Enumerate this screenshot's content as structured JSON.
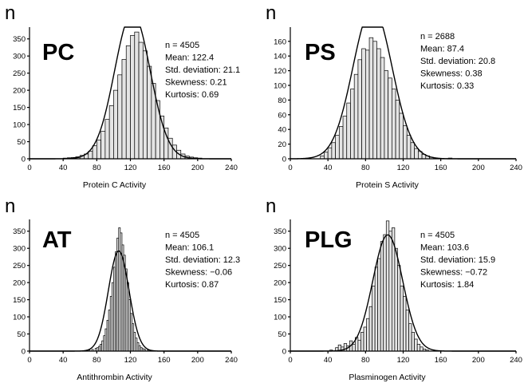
{
  "chart_data": [
    {
      "type": "bar",
      "panel_label": "PC",
      "y_axis_label": "n",
      "xlabel": "Protein C Activity",
      "xlim": [
        0,
        240
      ],
      "ylim": [
        0,
        375
      ],
      "xticks": [
        0,
        40,
        80,
        120,
        160,
        200,
        240
      ],
      "yticks": [
        0,
        50,
        100,
        150,
        200,
        250,
        300,
        350
      ],
      "stats": [
        "n = 4505",
        "Mean: 122.4",
        "Std. deviation: 21.1",
        "Skewness: 0.21",
        "Kurtosis: 0.69"
      ],
      "fit": {
        "mean": 122.4,
        "sd": 21.1,
        "n": 4505
      },
      "bin_width": 5,
      "bins": [
        {
          "x": 40,
          "y": 2
        },
        {
          "x": 45,
          "y": 3
        },
        {
          "x": 50,
          "y": 4
        },
        {
          "x": 55,
          "y": 6
        },
        {
          "x": 60,
          "y": 10
        },
        {
          "x": 65,
          "y": 14
        },
        {
          "x": 70,
          "y": 22
        },
        {
          "x": 75,
          "y": 38
        },
        {
          "x": 80,
          "y": 55
        },
        {
          "x": 85,
          "y": 80
        },
        {
          "x": 90,
          "y": 115
        },
        {
          "x": 95,
          "y": 155
        },
        {
          "x": 100,
          "y": 200
        },
        {
          "x": 105,
          "y": 245
        },
        {
          "x": 110,
          "y": 290
        },
        {
          "x": 115,
          "y": 330
        },
        {
          "x": 120,
          "y": 360
        },
        {
          "x": 125,
          "y": 370
        },
        {
          "x": 130,
          "y": 340
        },
        {
          "x": 135,
          "y": 315
        },
        {
          "x": 140,
          "y": 270
        },
        {
          "x": 145,
          "y": 220
        },
        {
          "x": 150,
          "y": 170
        },
        {
          "x": 155,
          "y": 125
        },
        {
          "x": 160,
          "y": 90
        },
        {
          "x": 165,
          "y": 60
        },
        {
          "x": 170,
          "y": 40
        },
        {
          "x": 175,
          "y": 25
        },
        {
          "x": 180,
          "y": 14
        },
        {
          "x": 185,
          "y": 8
        },
        {
          "x": 190,
          "y": 5
        },
        {
          "x": 195,
          "y": 3
        },
        {
          "x": 200,
          "y": 2
        }
      ]
    },
    {
      "type": "bar",
      "panel_label": "PS",
      "y_axis_label": "n",
      "xlabel": "Protein S Activity",
      "xlim": [
        0,
        240
      ],
      "ylim": [
        0,
        175
      ],
      "xticks": [
        0,
        40,
        80,
        120,
        160,
        200,
        240
      ],
      "yticks": [
        0,
        20,
        40,
        60,
        80,
        100,
        120,
        140,
        160
      ],
      "stats": [
        "n = 2688",
        "Mean: 87.4",
        "Std. deviation: 20.8",
        "Skewness: 0.38",
        "Kurtosis: 0.33"
      ],
      "fit": {
        "mean": 87.4,
        "sd": 20.8,
        "n": 2688
      },
      "bin_width": 4,
      "bins": [
        {
          "x": 32,
          "y": 4
        },
        {
          "x": 36,
          "y": 9
        },
        {
          "x": 40,
          "y": 15
        },
        {
          "x": 44,
          "y": 22
        },
        {
          "x": 48,
          "y": 32
        },
        {
          "x": 52,
          "y": 44
        },
        {
          "x": 56,
          "y": 58
        },
        {
          "x": 60,
          "y": 76
        },
        {
          "x": 64,
          "y": 95
        },
        {
          "x": 68,
          "y": 115
        },
        {
          "x": 72,
          "y": 135
        },
        {
          "x": 76,
          "y": 150
        },
        {
          "x": 80,
          "y": 148
        },
        {
          "x": 84,
          "y": 165
        },
        {
          "x": 88,
          "y": 160
        },
        {
          "x": 92,
          "y": 150
        },
        {
          "x": 96,
          "y": 138
        },
        {
          "x": 100,
          "y": 120
        },
        {
          "x": 104,
          "y": 110
        },
        {
          "x": 108,
          "y": 95
        },
        {
          "x": 112,
          "y": 80
        },
        {
          "x": 116,
          "y": 62
        },
        {
          "x": 120,
          "y": 45
        },
        {
          "x": 124,
          "y": 32
        },
        {
          "x": 128,
          "y": 22
        },
        {
          "x": 132,
          "y": 14
        },
        {
          "x": 136,
          "y": 10
        },
        {
          "x": 140,
          "y": 6
        },
        {
          "x": 144,
          "y": 4
        },
        {
          "x": 148,
          "y": 2
        },
        {
          "x": 168,
          "y": 1
        }
      ]
    },
    {
      "type": "bar",
      "panel_label": "AT",
      "y_axis_label": "n",
      "xlabel": "Antithrombin Activity",
      "xlim": [
        0,
        240
      ],
      "ylim": [
        0,
        375
      ],
      "xticks": [
        0,
        40,
        80,
        120,
        160,
        200,
        240
      ],
      "yticks": [
        0,
        50,
        100,
        150,
        200,
        250,
        300,
        350
      ],
      "stats": [
        "n = 4505",
        "Mean: 106.1",
        "Std. deviation: 12.3",
        "Skewness: −0.06",
        "Kurtosis: 0.87"
      ],
      "fit": {
        "mean": 106.1,
        "sd": 12.3,
        "n": 4505
      },
      "bin_width": 2,
      "bins": [
        {
          "x": 66,
          "y": 2
        },
        {
          "x": 70,
          "y": 3
        },
        {
          "x": 74,
          "y": 5
        },
        {
          "x": 78,
          "y": 8
        },
        {
          "x": 80,
          "y": 10
        },
        {
          "x": 82,
          "y": 14
        },
        {
          "x": 84,
          "y": 20
        },
        {
          "x": 86,
          "y": 30
        },
        {
          "x": 88,
          "y": 45
        },
        {
          "x": 90,
          "y": 65
        },
        {
          "x": 92,
          "y": 90
        },
        {
          "x": 94,
          "y": 120
        },
        {
          "x": 96,
          "y": 160
        },
        {
          "x": 98,
          "y": 200
        },
        {
          "x": 100,
          "y": 245
        },
        {
          "x": 102,
          "y": 290
        },
        {
          "x": 104,
          "y": 330
        },
        {
          "x": 106,
          "y": 360
        },
        {
          "x": 108,
          "y": 345
        },
        {
          "x": 110,
          "y": 310
        },
        {
          "x": 112,
          "y": 280
        },
        {
          "x": 114,
          "y": 240
        },
        {
          "x": 116,
          "y": 200
        },
        {
          "x": 118,
          "y": 150
        },
        {
          "x": 120,
          "y": 110
        },
        {
          "x": 122,
          "y": 80
        },
        {
          "x": 124,
          "y": 55
        },
        {
          "x": 126,
          "y": 38
        },
        {
          "x": 128,
          "y": 25
        },
        {
          "x": 130,
          "y": 16
        },
        {
          "x": 132,
          "y": 10
        },
        {
          "x": 134,
          "y": 7
        },
        {
          "x": 136,
          "y": 5
        },
        {
          "x": 140,
          "y": 3
        },
        {
          "x": 144,
          "y": 2
        }
      ]
    },
    {
      "type": "bar",
      "panel_label": "PLG",
      "y_axis_label": "n",
      "xlabel": "Plasminogen Activity",
      "xlim": [
        0,
        240
      ],
      "ylim": [
        0,
        375
      ],
      "xticks": [
        0,
        40,
        80,
        120,
        160,
        200,
        240
      ],
      "yticks": [
        0,
        50,
        100,
        150,
        200,
        250,
        300,
        350
      ],
      "stats": [
        "n = 4505",
        "Mean: 103.6",
        "Std. deviation: 15.9",
        "Skewness: −0.72",
        "Kurtosis: 1.84"
      ],
      "fit": {
        "mean": 103.6,
        "sd": 15.9,
        "n": 4505
      },
      "bin_width": 3,
      "bins": [
        {
          "x": 42,
          "y": 3
        },
        {
          "x": 48,
          "y": 10
        },
        {
          "x": 51,
          "y": 18
        },
        {
          "x": 54,
          "y": 12
        },
        {
          "x": 57,
          "y": 22
        },
        {
          "x": 60,
          "y": 15
        },
        {
          "x": 63,
          "y": 30
        },
        {
          "x": 66,
          "y": 20
        },
        {
          "x": 69,
          "y": 40
        },
        {
          "x": 72,
          "y": 32
        },
        {
          "x": 75,
          "y": 55
        },
        {
          "x": 78,
          "y": 70
        },
        {
          "x": 81,
          "y": 95
        },
        {
          "x": 84,
          "y": 130
        },
        {
          "x": 87,
          "y": 190
        },
        {
          "x": 90,
          "y": 245
        },
        {
          "x": 93,
          "y": 270
        },
        {
          "x": 96,
          "y": 320
        },
        {
          "x": 99,
          "y": 340
        },
        {
          "x": 102,
          "y": 380
        },
        {
          "x": 105,
          "y": 350
        },
        {
          "x": 108,
          "y": 360
        },
        {
          "x": 111,
          "y": 300
        },
        {
          "x": 114,
          "y": 250
        },
        {
          "x": 117,
          "y": 190
        },
        {
          "x": 120,
          "y": 160
        },
        {
          "x": 123,
          "y": 120
        },
        {
          "x": 126,
          "y": 80
        },
        {
          "x": 129,
          "y": 55
        },
        {
          "x": 132,
          "y": 35
        },
        {
          "x": 135,
          "y": 20
        },
        {
          "x": 138,
          "y": 12
        },
        {
          "x": 141,
          "y": 6
        },
        {
          "x": 144,
          "y": 3
        }
      ]
    }
  ]
}
